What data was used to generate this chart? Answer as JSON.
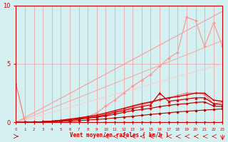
{
  "xlabel": "Vent moyen/en rafales ( km/h )",
  "xlim": [
    0,
    23
  ],
  "ylim": [
    0,
    10
  ],
  "yticks": [
    0,
    5,
    10
  ],
  "xticks": [
    0,
    1,
    2,
    3,
    4,
    5,
    6,
    7,
    8,
    9,
    10,
    11,
    12,
    13,
    14,
    15,
    16,
    17,
    18,
    19,
    20,
    21,
    22,
    23
  ],
  "bg_color": "#d4f0f0",
  "grid_color": "#ee8888",
  "series": [
    {
      "x": [
        0,
        23
      ],
      "y": [
        0,
        5.0
      ],
      "color": "#ffcccc",
      "lw": 0.8,
      "marker": null,
      "ms": 0
    },
    {
      "x": [
        0,
        23
      ],
      "y": [
        0,
        7.0
      ],
      "color": "#ffaaaa",
      "lw": 0.8,
      "marker": null,
      "ms": 0
    },
    {
      "x": [
        0,
        23
      ],
      "y": [
        0,
        9.5
      ],
      "color": "#ff9999",
      "lw": 0.8,
      "marker": null,
      "ms": 0
    },
    {
      "x": [
        0,
        1,
        2,
        3,
        4,
        5,
        6,
        7,
        8,
        9,
        10,
        11,
        12,
        13,
        14,
        15,
        16,
        17,
        18,
        19,
        20,
        21,
        22,
        23
      ],
      "y": [
        3.3,
        0.05,
        0.05,
        0.05,
        0.1,
        0.15,
        0.2,
        0.3,
        0.4,
        0.5,
        0.7,
        0.9,
        1.1,
        1.3,
        1.5,
        1.7,
        1.9,
        2.1,
        2.3,
        2.5,
        2.5,
        2.4,
        1.6,
        1.7
      ],
      "color": "#ff7777",
      "lw": 0.9,
      "marker": "o",
      "ms": 2.0
    },
    {
      "x": [
        0,
        1,
        2,
        3,
        4,
        5,
        6,
        7,
        8,
        9,
        10,
        11,
        12,
        13,
        14,
        15,
        16,
        17,
        18,
        19,
        20,
        21,
        22,
        23
      ],
      "y": [
        0,
        0.0,
        0.0,
        0.05,
        0.1,
        0.15,
        0.2,
        0.3,
        0.5,
        0.8,
        1.4,
        1.9,
        2.5,
        3.1,
        3.6,
        4.1,
        4.8,
        5.5,
        6.0,
        9.0,
        8.7,
        6.5,
        8.5,
        6.5
      ],
      "color": "#ff9999",
      "lw": 0.9,
      "marker": "D",
      "ms": 2.0
    },
    {
      "x": [
        0,
        1,
        2,
        3,
        4,
        5,
        6,
        7,
        8,
        9,
        10,
        11,
        12,
        13,
        14,
        15,
        16,
        17,
        18,
        19,
        20,
        21,
        22,
        23
      ],
      "y": [
        0,
        0,
        0,
        0,
        0,
        0,
        0,
        0,
        0,
        0,
        0,
        0,
        0,
        0,
        0,
        0,
        0,
        0,
        0,
        0,
        0,
        0,
        0,
        0
      ],
      "color": "#aa0000",
      "lw": 0.8,
      "marker": "s",
      "ms": 1.8
    },
    {
      "x": [
        0,
        1,
        2,
        3,
        4,
        5,
        6,
        7,
        8,
        9,
        10,
        11,
        12,
        13,
        14,
        15,
        16,
        17,
        18,
        19,
        20,
        21,
        22,
        23
      ],
      "y": [
        0,
        0,
        0,
        0,
        0.05,
        0.08,
        0.1,
        0.15,
        0.2,
        0.25,
        0.3,
        0.38,
        0.45,
        0.52,
        0.6,
        0.68,
        0.75,
        0.82,
        0.9,
        0.95,
        1.0,
        1.05,
        1.1,
        1.15
      ],
      "color": "#aa0000",
      "lw": 0.8,
      "marker": "D",
      "ms": 1.8
    },
    {
      "x": [
        0,
        1,
        2,
        3,
        4,
        5,
        6,
        7,
        8,
        9,
        10,
        11,
        12,
        13,
        14,
        15,
        16,
        17,
        18,
        19,
        20,
        21,
        22,
        23
      ],
      "y": [
        0,
        0,
        0,
        0.05,
        0.1,
        0.15,
        0.2,
        0.28,
        0.36,
        0.44,
        0.55,
        0.7,
        0.85,
        1.0,
        1.1,
        1.2,
        1.35,
        1.45,
        1.55,
        1.6,
        1.7,
        1.75,
        1.4,
        1.35
      ],
      "color": "#cc0000",
      "lw": 0.9,
      "marker": "P",
      "ms": 2.2
    },
    {
      "x": [
        0,
        1,
        2,
        3,
        4,
        5,
        6,
        7,
        8,
        9,
        10,
        11,
        12,
        13,
        14,
        15,
        16,
        17,
        18,
        19,
        20,
        21,
        22,
        23
      ],
      "y": [
        0,
        0,
        0,
        0.05,
        0.1,
        0.15,
        0.2,
        0.3,
        0.4,
        0.5,
        0.65,
        0.85,
        1.0,
        1.2,
        1.35,
        1.5,
        2.5,
        1.8,
        1.9,
        2.0,
        2.1,
        2.1,
        1.6,
        1.5
      ],
      "color": "#cc0000",
      "lw": 0.9,
      "marker": "^",
      "ms": 2.5
    },
    {
      "x": [
        0,
        1,
        2,
        3,
        4,
        5,
        6,
        7,
        8,
        9,
        10,
        11,
        12,
        13,
        14,
        15,
        16,
        17,
        18,
        19,
        20,
        21,
        22,
        23
      ],
      "y": [
        0,
        0,
        0,
        0.05,
        0.1,
        0.18,
        0.28,
        0.38,
        0.5,
        0.62,
        0.8,
        1.0,
        1.2,
        1.4,
        1.6,
        1.75,
        1.95,
        2.1,
        2.2,
        2.35,
        2.5,
        2.5,
        1.9,
        1.8
      ],
      "color": "#cc0000",
      "lw": 1.0,
      "marker": "+",
      "ms": 3.5
    }
  ]
}
